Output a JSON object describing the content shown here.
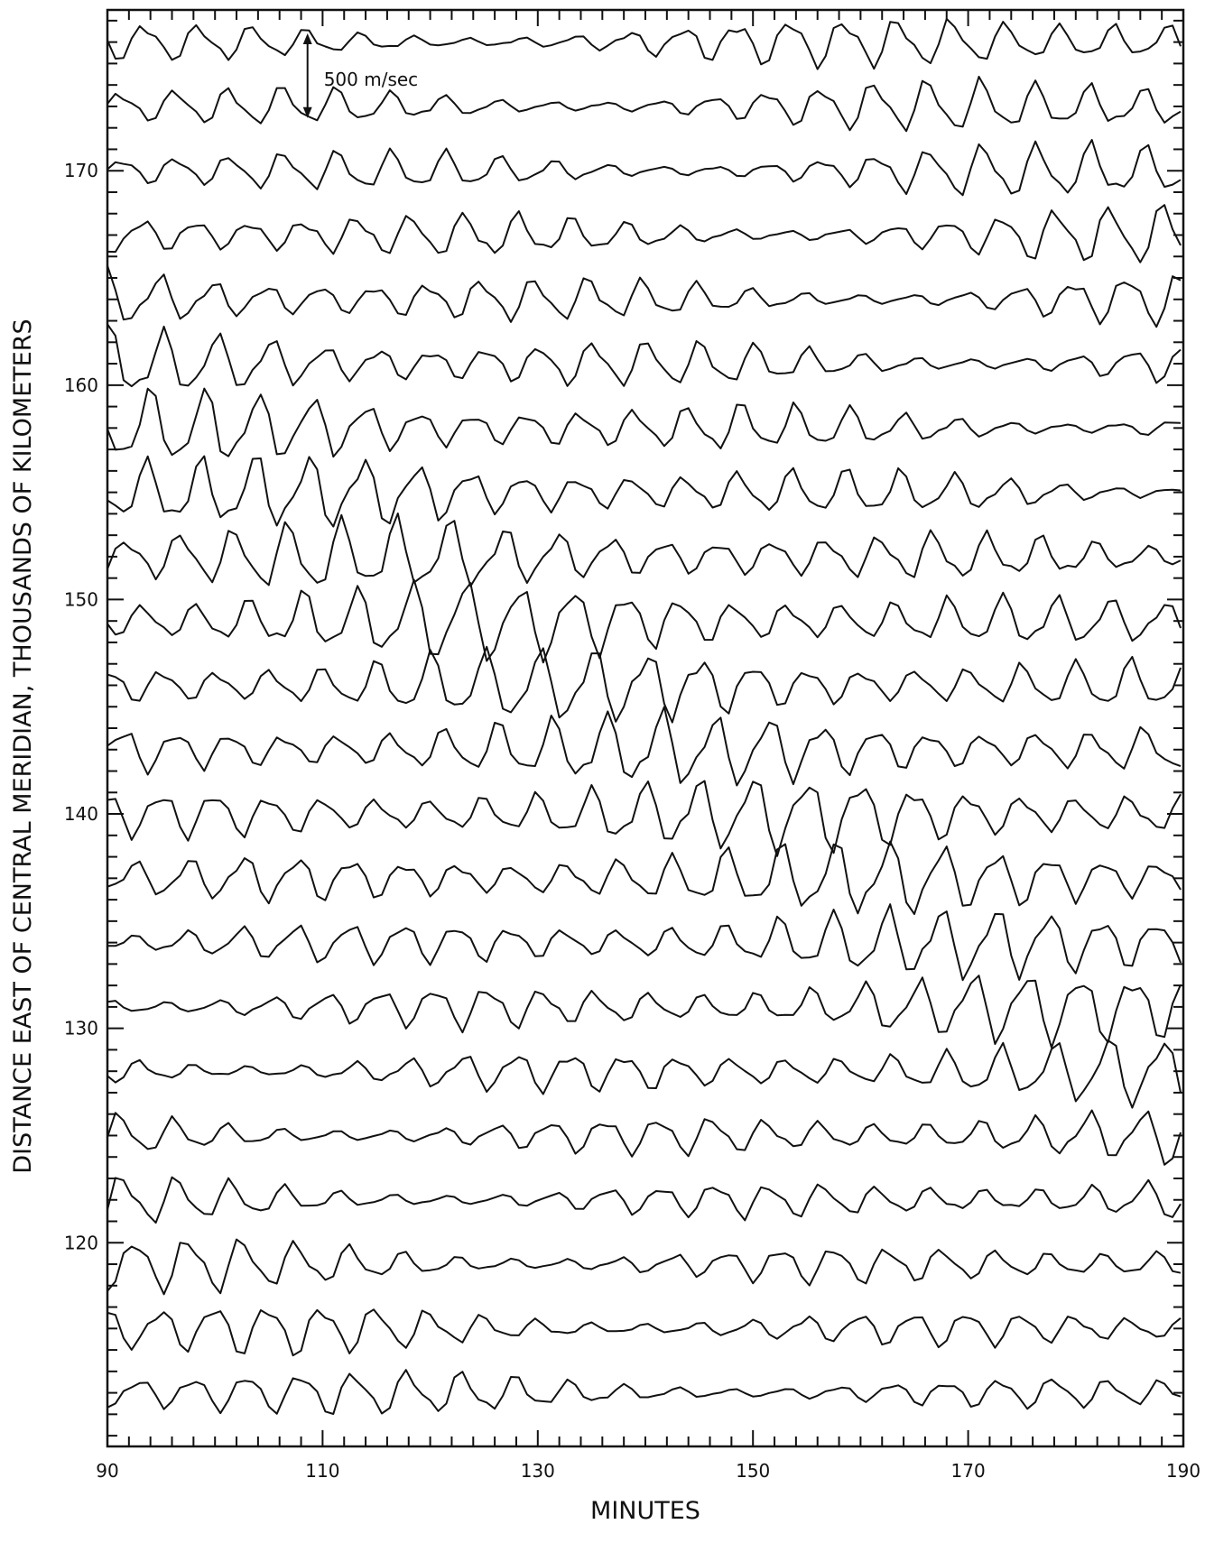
{
  "chart_data": {
    "type": "line",
    "xlabel": "MINUTES",
    "ylabel": "DISTANCE EAST OF CENTRAL MERIDIAN, THOUSANDS OF KILOMETERS",
    "xlim": [
      90,
      190
    ],
    "ylim": [
      110.5,
      177.5
    ],
    "x_tick_labels": [
      "90",
      "110",
      "130",
      "150",
      "170",
      "190"
    ],
    "y_tick_labels": [
      "120",
      "130",
      "140",
      "150",
      "160",
      "170"
    ],
    "x_ticks": [
      90,
      110,
      130,
      150,
      170,
      190
    ],
    "y_ticks": [
      120,
      130,
      140,
      150,
      160,
      170
    ],
    "x_minor_step": 2,
    "y_minor_step": 1,
    "grid": false,
    "scale_bar": {
      "label": "500 m/sec",
      "value": 500,
      "x": 108.6
    },
    "series_offsets_km_thousands": [
      113,
      116,
      119,
      122,
      125,
      128,
      131,
      134,
      137,
      140,
      143,
      146,
      149,
      152,
      155,
      158,
      161,
      164,
      167,
      170,
      173,
      176
    ],
    "period_min": 5,
    "wave_amplitude_mps": [
      260,
      300,
      320,
      300,
      330,
      340,
      360,
      360,
      380,
      380,
      380,
      380,
      400,
      380,
      380,
      380,
      380,
      360,
      360,
      340,
      320,
      300
    ]
  }
}
